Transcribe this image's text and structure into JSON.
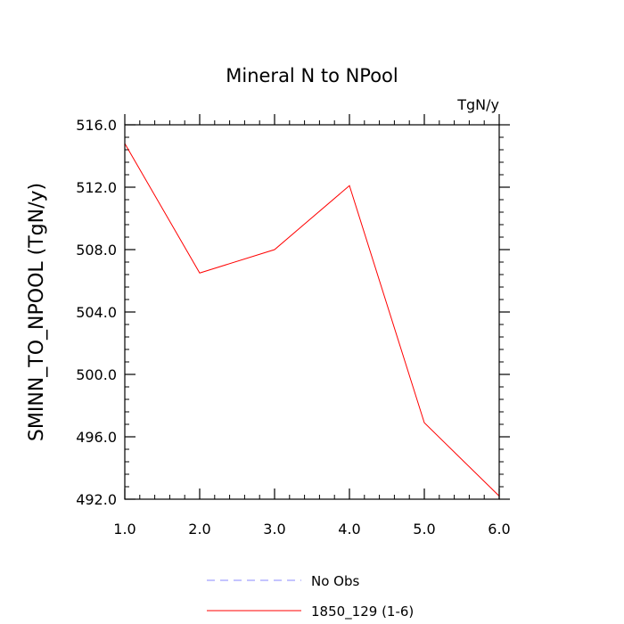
{
  "chart_data": {
    "type": "line",
    "title": "Mineral N to NPool",
    "units_label": "TgN/y",
    "ylabel": "SMINN_TO_NPOOL  (TgN/y)",
    "xlabel": "",
    "xlim": [
      1.0,
      6.0
    ],
    "ylim": [
      492.0,
      516.0
    ],
    "x_ticks": [
      1.0,
      2.0,
      3.0,
      4.0,
      5.0,
      6.0
    ],
    "x_tick_labels": [
      "1.0",
      "2.0",
      "3.0",
      "4.0",
      "5.0",
      "6.0"
    ],
    "y_ticks": [
      492.0,
      496.0,
      500.0,
      504.0,
      508.0,
      512.0,
      516.0
    ],
    "y_tick_labels": [
      "492.0",
      "496.0",
      "500.0",
      "504.0",
      "508.0",
      "512.0",
      "516.0"
    ],
    "x_minor_step": 0.2,
    "y_minor_step": 0.8,
    "grid": false,
    "legend_position": "bottom-center",
    "series": [
      {
        "name": "No Obs",
        "color": "#8888ff",
        "dashed": true,
        "x": [],
        "y": []
      },
      {
        "name": "1850_129 (1-6)",
        "color": "#ff0000",
        "dashed": false,
        "x": [
          1.0,
          2.0,
          3.0,
          4.0,
          5.0,
          6.0
        ],
        "y": [
          514.8,
          506.5,
          508.0,
          512.1,
          496.9,
          492.2
        ]
      }
    ]
  }
}
